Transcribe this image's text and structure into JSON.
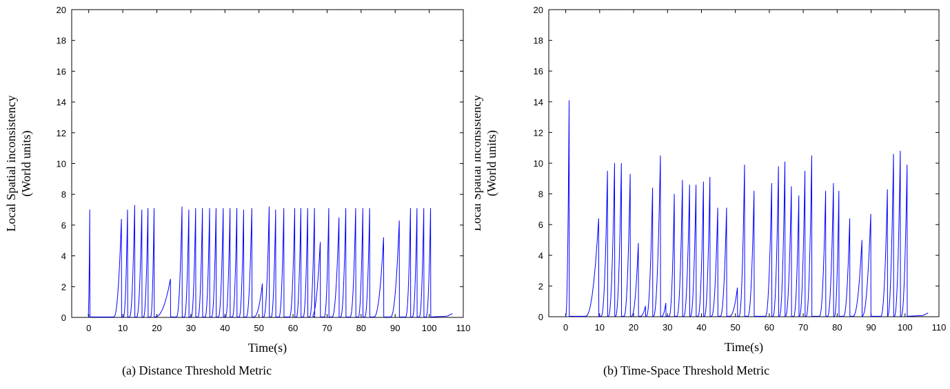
{
  "chart_data": [
    {
      "type": "line",
      "caption": "(a) Distance Threshold Metric",
      "xlabel": "Time(s)",
      "ylabel_lines": [
        "Local Spatial inconsistency",
        "(World units)"
      ],
      "xlim": [
        -5,
        110
      ],
      "ylim": [
        0,
        20
      ],
      "xticks": [
        0,
        10,
        20,
        30,
        40,
        50,
        60,
        70,
        80,
        90,
        100,
        110
      ],
      "yticks": [
        0,
        2,
        4,
        6,
        8,
        10,
        12,
        14,
        16,
        18,
        20
      ],
      "grid": false,
      "color": "#0000ff",
      "spikes": [
        {
          "t": 0.3,
          "w": 0.5,
          "h": 7.0
        },
        {
          "t": 9.6,
          "w": 2.2,
          "h": 6.4
        },
        {
          "t": 11.4,
          "w": 1.2,
          "h": 7.0
        },
        {
          "t": 13.5,
          "w": 1.5,
          "h": 7.3
        },
        {
          "t": 15.6,
          "w": 1.5,
          "h": 7.0
        },
        {
          "t": 17.4,
          "w": 1.3,
          "h": 7.1
        },
        {
          "t": 19.2,
          "w": 1.0,
          "h": 7.1
        },
        {
          "t": 24.0,
          "w": 4.5,
          "h": 2.5
        },
        {
          "t": 27.4,
          "w": 1.6,
          "h": 7.2
        },
        {
          "t": 29.4,
          "w": 1.3,
          "h": 7.0
        },
        {
          "t": 31.4,
          "w": 1.3,
          "h": 7.1
        },
        {
          "t": 33.4,
          "w": 1.3,
          "h": 7.1
        },
        {
          "t": 35.5,
          "w": 1.3,
          "h": 7.1
        },
        {
          "t": 37.4,
          "w": 1.3,
          "h": 7.1
        },
        {
          "t": 39.5,
          "w": 1.4,
          "h": 7.1
        },
        {
          "t": 41.5,
          "w": 1.3,
          "h": 7.1
        },
        {
          "t": 43.5,
          "w": 1.3,
          "h": 7.1
        },
        {
          "t": 45.5,
          "w": 1.3,
          "h": 7.0
        },
        {
          "t": 47.9,
          "w": 1.6,
          "h": 7.1
        },
        {
          "t": 51.0,
          "w": 2.5,
          "h": 2.2
        },
        {
          "t": 53.0,
          "w": 1.6,
          "h": 7.2
        },
        {
          "t": 54.9,
          "w": 1.3,
          "h": 7.0
        },
        {
          "t": 57.3,
          "w": 1.4,
          "h": 7.1
        },
        {
          "t": 60.5,
          "w": 1.5,
          "h": 7.1
        },
        {
          "t": 62.3,
          "w": 1.3,
          "h": 7.1
        },
        {
          "t": 64.3,
          "w": 1.3,
          "h": 7.1
        },
        {
          "t": 66.3,
          "w": 1.4,
          "h": 7.1
        },
        {
          "t": 68.0,
          "w": 2.5,
          "h": 4.9
        },
        {
          "t": 70.5,
          "w": 1.3,
          "h": 7.1
        },
        {
          "t": 73.5,
          "w": 2.0,
          "h": 6.5
        },
        {
          "t": 75.5,
          "w": 1.5,
          "h": 7.1
        },
        {
          "t": 78.4,
          "w": 1.6,
          "h": 7.1
        },
        {
          "t": 80.5,
          "w": 1.3,
          "h": 7.1
        },
        {
          "t": 82.5,
          "w": 1.4,
          "h": 7.1
        },
        {
          "t": 86.6,
          "w": 2.8,
          "h": 5.2
        },
        {
          "t": 91.2,
          "w": 2.5,
          "h": 6.3
        },
        {
          "t": 94.5,
          "w": 1.4,
          "h": 7.1
        },
        {
          "t": 96.4,
          "w": 1.3,
          "h": 7.1
        },
        {
          "t": 98.4,
          "w": 1.3,
          "h": 7.1
        },
        {
          "t": 100.4,
          "w": 1.3,
          "h": 7.1
        }
      ],
      "x_start": 0.0,
      "x_end": 106.8,
      "tail_value": 0.25
    },
    {
      "type": "line",
      "caption": "(b) Time-Space Threshold Metric",
      "xlabel": "Time(s)",
      "ylabel_lines": [
        "Local Spatial inconsistency",
        "(World units)"
      ],
      "xlim": [
        -5,
        110
      ],
      "ylim": [
        0,
        20
      ],
      "xticks": [
        0,
        10,
        20,
        30,
        40,
        50,
        60,
        70,
        80,
        90,
        100,
        110
      ],
      "yticks": [
        0,
        2,
        4,
        6,
        8,
        10,
        12,
        14,
        16,
        18,
        20
      ],
      "grid": false,
      "color": "#0000ff",
      "spikes": [
        {
          "t": 1.0,
          "w": 1.0,
          "h": 14.1
        },
        {
          "t": 9.7,
          "w": 3.8,
          "h": 6.4
        },
        {
          "t": 12.3,
          "w": 1.8,
          "h": 9.5
        },
        {
          "t": 14.4,
          "w": 1.8,
          "h": 10.0
        },
        {
          "t": 16.4,
          "w": 1.7,
          "h": 10.0
        },
        {
          "t": 19.0,
          "w": 1.8,
          "h": 9.3
        },
        {
          "t": 21.4,
          "w": 2.0,
          "h": 4.8
        },
        {
          "t": 23.5,
          "w": 1.5,
          "h": 0.7
        },
        {
          "t": 25.6,
          "w": 1.8,
          "h": 8.4
        },
        {
          "t": 27.9,
          "w": 2.0,
          "h": 10.5
        },
        {
          "t": 29.5,
          "w": 1.2,
          "h": 0.9
        },
        {
          "t": 32.0,
          "w": 1.5,
          "h": 8.0
        },
        {
          "t": 34.4,
          "w": 1.6,
          "h": 8.9
        },
        {
          "t": 36.5,
          "w": 1.7,
          "h": 8.6
        },
        {
          "t": 38.4,
          "w": 1.6,
          "h": 8.6
        },
        {
          "t": 40.6,
          "w": 1.6,
          "h": 8.8
        },
        {
          "t": 42.5,
          "w": 1.6,
          "h": 9.1
        },
        {
          "t": 44.8,
          "w": 1.8,
          "h": 7.1
        },
        {
          "t": 47.4,
          "w": 1.8,
          "h": 7.1
        },
        {
          "t": 50.6,
          "w": 2.3,
          "h": 1.9
        },
        {
          "t": 52.7,
          "w": 1.6,
          "h": 9.9
        },
        {
          "t": 55.5,
          "w": 1.8,
          "h": 8.2
        },
        {
          "t": 60.7,
          "w": 1.8,
          "h": 8.7
        },
        {
          "t": 62.7,
          "w": 1.6,
          "h": 9.8
        },
        {
          "t": 64.6,
          "w": 1.6,
          "h": 10.1
        },
        {
          "t": 66.5,
          "w": 1.7,
          "h": 8.5
        },
        {
          "t": 68.7,
          "w": 1.5,
          "h": 7.9
        },
        {
          "t": 70.5,
          "w": 1.6,
          "h": 9.5
        },
        {
          "t": 72.5,
          "w": 1.6,
          "h": 10.5
        },
        {
          "t": 76.6,
          "w": 1.8,
          "h": 8.2
        },
        {
          "t": 78.9,
          "w": 1.7,
          "h": 8.7
        },
        {
          "t": 80.5,
          "w": 1.3,
          "h": 8.2
        },
        {
          "t": 83.7,
          "w": 1.8,
          "h": 6.4
        },
        {
          "t": 87.3,
          "w": 2.6,
          "h": 5.0
        },
        {
          "t": 89.9,
          "w": 2.5,
          "h": 6.7
        },
        {
          "t": 94.8,
          "w": 1.9,
          "h": 8.3
        },
        {
          "t": 96.6,
          "w": 1.7,
          "h": 10.6
        },
        {
          "t": 98.6,
          "w": 1.7,
          "h": 10.8
        },
        {
          "t": 100.6,
          "w": 1.7,
          "h": 9.9
        }
      ],
      "x_start": 0.0,
      "x_end": 106.8,
      "tail_value": 0.25
    }
  ]
}
